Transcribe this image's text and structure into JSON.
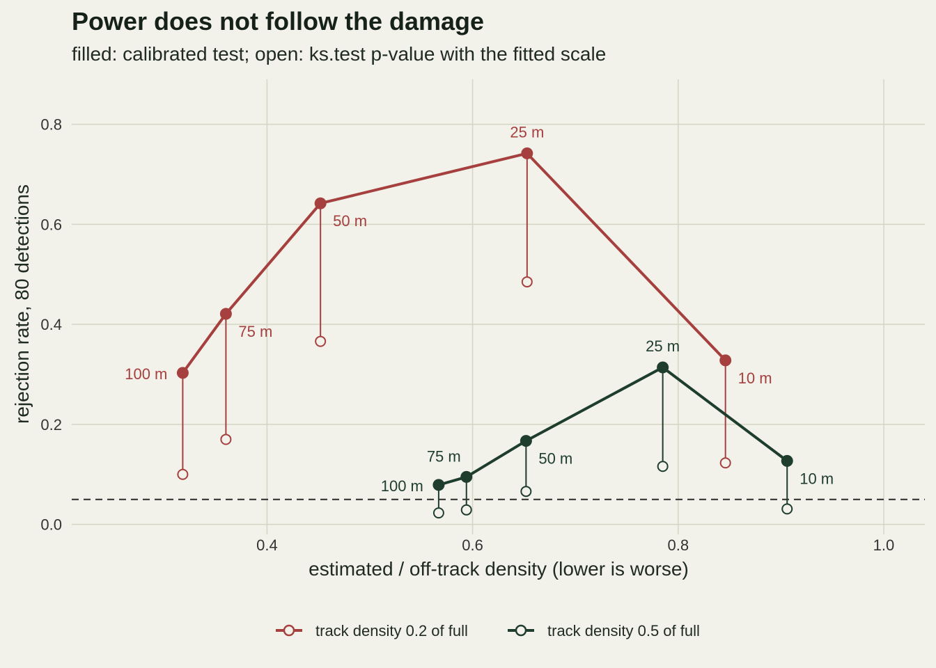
{
  "chart_data": {
    "type": "line",
    "title": "Power does not follow the damage",
    "subtitle": "filled: calibrated test; open: ks.test p-value with the fitted scale",
    "xlabel": "estimated / off-track density (lower is worse)",
    "ylabel": "rejection rate, 80 detections",
    "xlim": [
      0.21,
      1.04
    ],
    "ylim": [
      -0.02,
      0.89
    ],
    "x_ticks": [
      0.4,
      0.6,
      0.8,
      1.0
    ],
    "x_tick_labels": [
      "0.4",
      "0.6",
      "0.8",
      "1.0"
    ],
    "y_ticks": [
      0.0,
      0.2,
      0.4,
      0.6,
      0.8
    ],
    "y_tick_labels": [
      "0.0",
      "0.2",
      "0.4",
      "0.6",
      "0.8"
    ],
    "grid": true,
    "reference_line": {
      "y": 0.05,
      "style": "dashed"
    },
    "legend_position": "bottom",
    "series": [
      {
        "name": "track density 0.2 of full",
        "color": "#a5403f",
        "points": [
          {
            "label": "100 m",
            "x": 0.318,
            "calibrated": 0.303,
            "ks": 0.1
          },
          {
            "label": "75 m",
            "x": 0.36,
            "calibrated": 0.421,
            "ks": 0.17
          },
          {
            "label": "50 m",
            "x": 0.452,
            "calibrated": 0.642,
            "ks": 0.366
          },
          {
            "label": "25 m",
            "x": 0.653,
            "calibrated": 0.742,
            "ks": 0.485
          },
          {
            "label": "10 m",
            "x": 0.846,
            "calibrated": 0.328,
            "ks": 0.123
          }
        ]
      },
      {
        "name": "track density 0.5 of full",
        "color": "#1e3d2c",
        "points": [
          {
            "label": "100 m",
            "x": 0.567,
            "calibrated": 0.079,
            "ks": 0.023
          },
          {
            "label": "75 m",
            "x": 0.594,
            "calibrated": 0.095,
            "ks": 0.029
          },
          {
            "label": "50 m",
            "x": 0.652,
            "calibrated": 0.167,
            "ks": 0.066
          },
          {
            "label": "25 m",
            "x": 0.785,
            "calibrated": 0.314,
            "ks": 0.116
          },
          {
            "label": "10 m",
            "x": 0.906,
            "calibrated": 0.127,
            "ks": 0.031
          }
        ]
      }
    ]
  }
}
